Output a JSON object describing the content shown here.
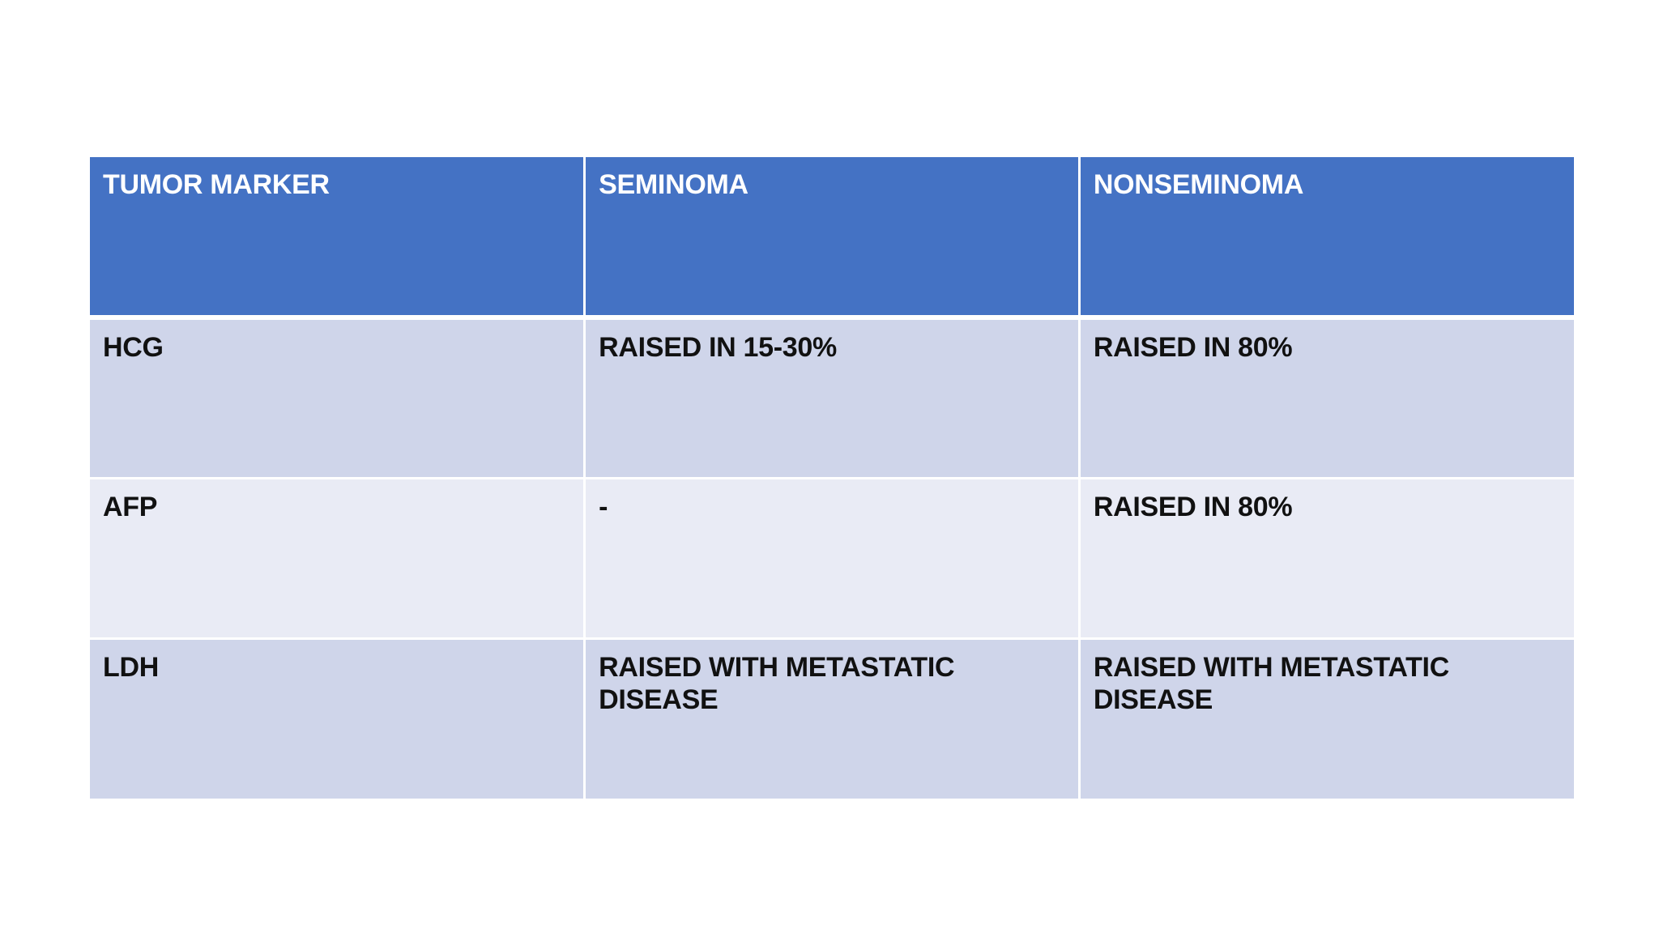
{
  "table": {
    "header": [
      "TUMOR MARKER",
      "SEMINOMA",
      "NONSEMINOMA"
    ],
    "rows": [
      [
        "HCG",
        "RAISED IN 15-30%",
        "RAISED IN 80%"
      ],
      [
        "AFP",
        "-",
        "RAISED IN 80%"
      ],
      [
        "LDH",
        "RAISED WITH METASTATIC DISEASE",
        "RAISED WITH METASTATIC DISEASE"
      ]
    ]
  },
  "colors": {
    "header_bg": "#4472c4",
    "header_text": "#ffffff",
    "row_band_1": "#cfd5ea",
    "row_band_2": "#e9ebf5",
    "body_text": "#111111"
  }
}
